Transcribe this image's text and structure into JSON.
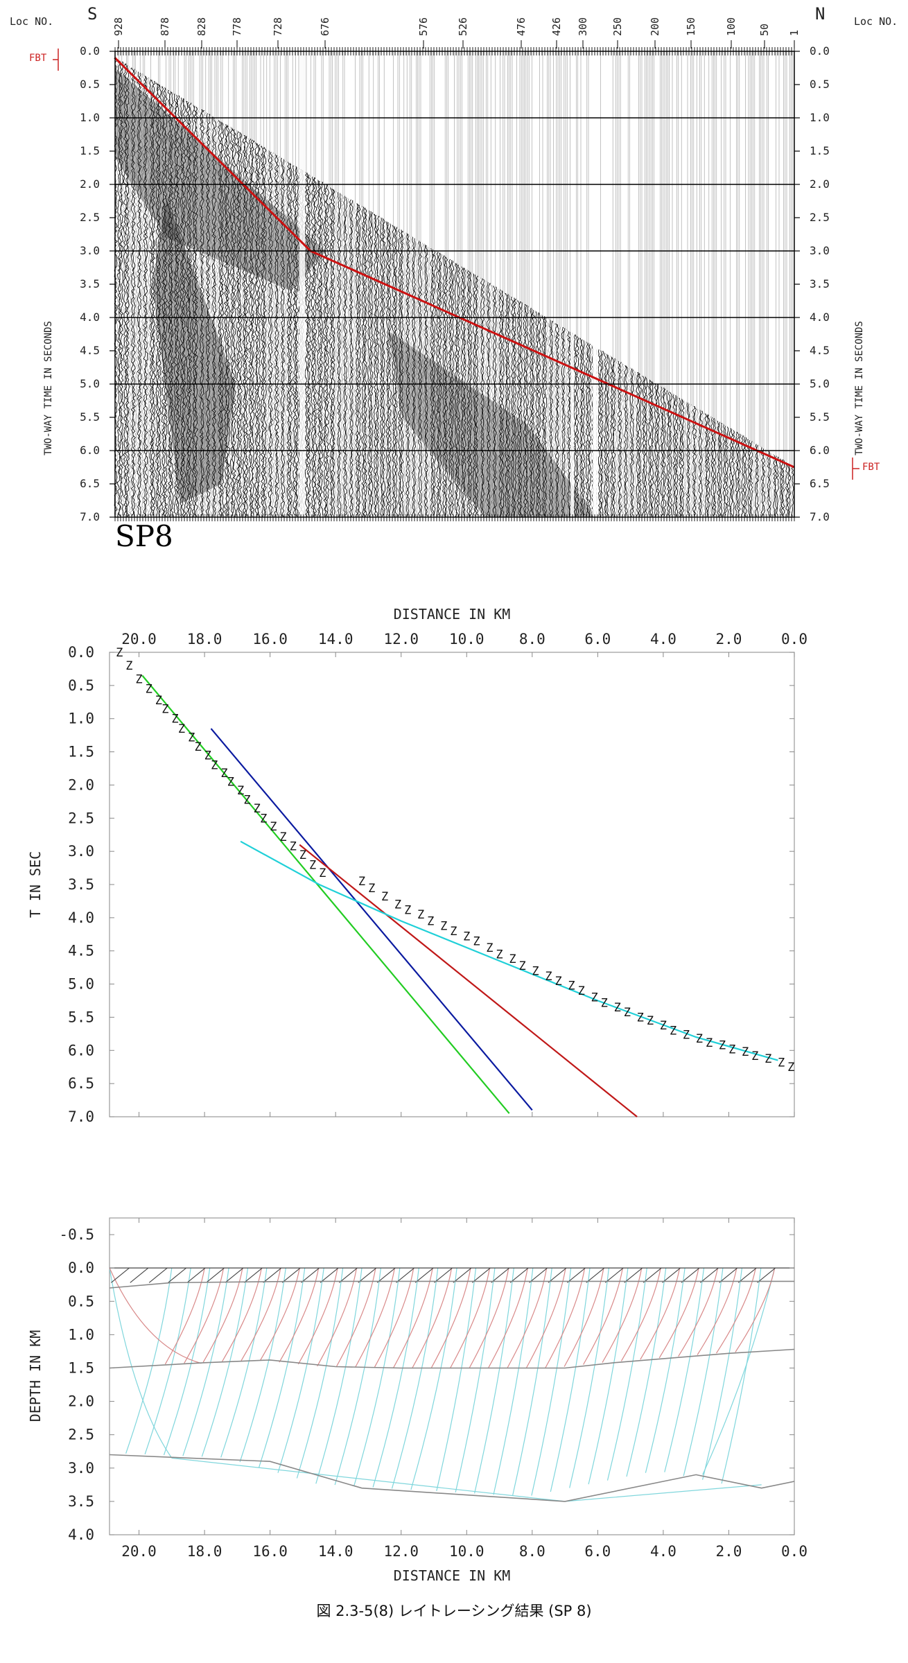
{
  "caption": "図 2.3-5(8) レイトレーシング結果 (SP 8)",
  "chart_data": [
    {
      "type": "seismic_section",
      "title": "SP8",
      "header_left": "Loc NO.",
      "header_right": "Loc NO.",
      "dir_left": "S",
      "dir_right": "N",
      "loc_labels": [
        "928",
        "878",
        "828",
        "778",
        "728",
        "676",
        "576",
        "526",
        "476",
        "426",
        "300",
        "250",
        "200",
        "150",
        "100",
        "50",
        "1"
      ],
      "ylabel_left": "TWO-WAY TIME IN SECONDS",
      "ylabel_right": "TWO-WAY TIME IN SECONDS",
      "fbt_label": "FBT",
      "y_ticks": [
        "0.0",
        "0.5",
        "1.0",
        "1.5",
        "2.0",
        "2.5",
        "3.0",
        "3.5",
        "4.0",
        "4.5",
        "5.0",
        "5.5",
        "6.0",
        "6.5",
        "7.0"
      ],
      "ylim": [
        0,
        7
      ],
      "first_break_pick": {
        "color": "#cc1111",
        "start_time": 0.1,
        "end_time": 6.25,
        "kink_time": 3.0
      }
    },
    {
      "type": "line",
      "title": "DISTANCE IN KM",
      "xlabel": "DISTANCE IN KM",
      "ylabel": "T IN SEC",
      "x_ticks": [
        "20.0",
        "18.0",
        "16.0",
        "14.0",
        "12.0",
        "10.0",
        "8.0",
        "6.0",
        "4.0",
        "2.0",
        "0.0"
      ],
      "y_ticks": [
        "0.0",
        "0.5",
        "1.0",
        "1.5",
        "2.0",
        "2.5",
        "3.0",
        "3.5",
        "4.0",
        "4.5",
        "5.0",
        "5.5",
        "6.0",
        "6.5",
        "7.0"
      ],
      "xlim": [
        20.9,
        0
      ],
      "ylim": [
        0,
        7
      ],
      "series": [
        {
          "color": "#22cc22",
          "x": [
            19.9,
            8.7
          ],
          "y": [
            0.35,
            6.95
          ]
        },
        {
          "color": "#0a1aa0",
          "x": [
            17.8,
            8.0
          ],
          "y": [
            1.15,
            6.9
          ]
        },
        {
          "color": "#c01818",
          "x": [
            15.1,
            4.8
          ],
          "y": [
            2.9,
            7.0
          ]
        },
        {
          "color": "#20d0d8",
          "x": [
            16.9,
            14.5,
            12.0,
            9.0,
            6.0,
            3.0,
            0.5
          ],
          "y": [
            2.85,
            3.5,
            4.05,
            4.65,
            5.25,
            5.8,
            6.15
          ]
        }
      ],
      "picks": {
        "marker": "Z",
        "x": [
          20.6,
          20.3,
          20.0,
          19.7,
          19.4,
          19.2,
          18.9,
          18.7,
          18.4,
          18.2,
          17.9,
          17.7,
          17.4,
          17.2,
          16.9,
          16.7,
          16.4,
          16.2,
          15.9,
          15.6,
          15.3,
          15.0,
          14.7,
          14.4,
          13.2,
          12.9,
          12.5,
          12.1,
          11.8,
          11.4,
          11.1,
          10.7,
          10.4,
          10.0,
          9.7,
          9.3,
          9.0,
          8.6,
          8.3,
          7.9,
          7.5,
          7.2,
          6.8,
          6.5,
          6.1,
          5.8,
          5.4,
          5.1,
          4.7,
          4.4,
          4.0,
          3.7,
          3.3,
          2.9,
          2.6,
          2.2,
          1.9,
          1.5,
          1.2,
          0.8,
          0.4,
          0.1
        ],
        "y": [
          0.0,
          0.2,
          0.4,
          0.55,
          0.72,
          0.85,
          1.0,
          1.15,
          1.28,
          1.42,
          1.55,
          1.7,
          1.82,
          1.95,
          2.08,
          2.22,
          2.35,
          2.5,
          2.62,
          2.78,
          2.92,
          3.05,
          3.2,
          3.32,
          3.45,
          3.55,
          3.68,
          3.8,
          3.88,
          3.95,
          4.05,
          4.12,
          4.2,
          4.28,
          4.35,
          4.45,
          4.55,
          4.62,
          4.72,
          4.8,
          4.88,
          4.95,
          5.02,
          5.1,
          5.2,
          5.28,
          5.35,
          5.42,
          5.5,
          5.55,
          5.62,
          5.7,
          5.76,
          5.82,
          5.88,
          5.92,
          5.98,
          6.02,
          6.08,
          6.12,
          6.18,
          6.25
        ]
      }
    },
    {
      "type": "ray_model",
      "xlabel": "DISTANCE IN KM",
      "ylabel": "DEPTH IN KM",
      "x_ticks": [
        "20.0",
        "18.0",
        "16.0",
        "14.0",
        "12.0",
        "10.0",
        "8.0",
        "6.0",
        "4.0",
        "2.0",
        "0.0"
      ],
      "y_ticks": [
        "-0.5",
        "0.0",
        "0.5",
        "1.0",
        "1.5",
        "2.0",
        "2.5",
        "3.0",
        "3.5",
        "4.0"
      ],
      "xlim": [
        20.9,
        0
      ],
      "ylim": [
        -0.75,
        4.0
      ],
      "colors": {
        "surface_rays": "#444444",
        "layer1_rays": "#d88888",
        "layer2_rays": "#7fd6dc",
        "interfaces": "#888888"
      },
      "interfaces": [
        {
          "x": [
            20.9,
            19.0,
            15.0,
            10.0,
            5.0,
            0.0
          ],
          "y": [
            0.3,
            0.22,
            0.2,
            0.2,
            0.2,
            0.2
          ]
        },
        {
          "x": [
            20.9,
            18.0,
            16.0,
            14.0,
            12.0,
            7.0,
            5.5,
            2.0,
            0.0
          ],
          "y": [
            1.5,
            1.42,
            1.38,
            1.48,
            1.5,
            1.5,
            1.42,
            1.28,
            1.22
          ]
        },
        {
          "x": [
            20.9,
            16.0,
            13.2,
            7.0,
            3.0,
            1.0,
            0.0
          ],
          "y": [
            2.8,
            2.9,
            3.3,
            3.5,
            3.1,
            3.3,
            3.2
          ]
        }
      ]
    }
  ]
}
